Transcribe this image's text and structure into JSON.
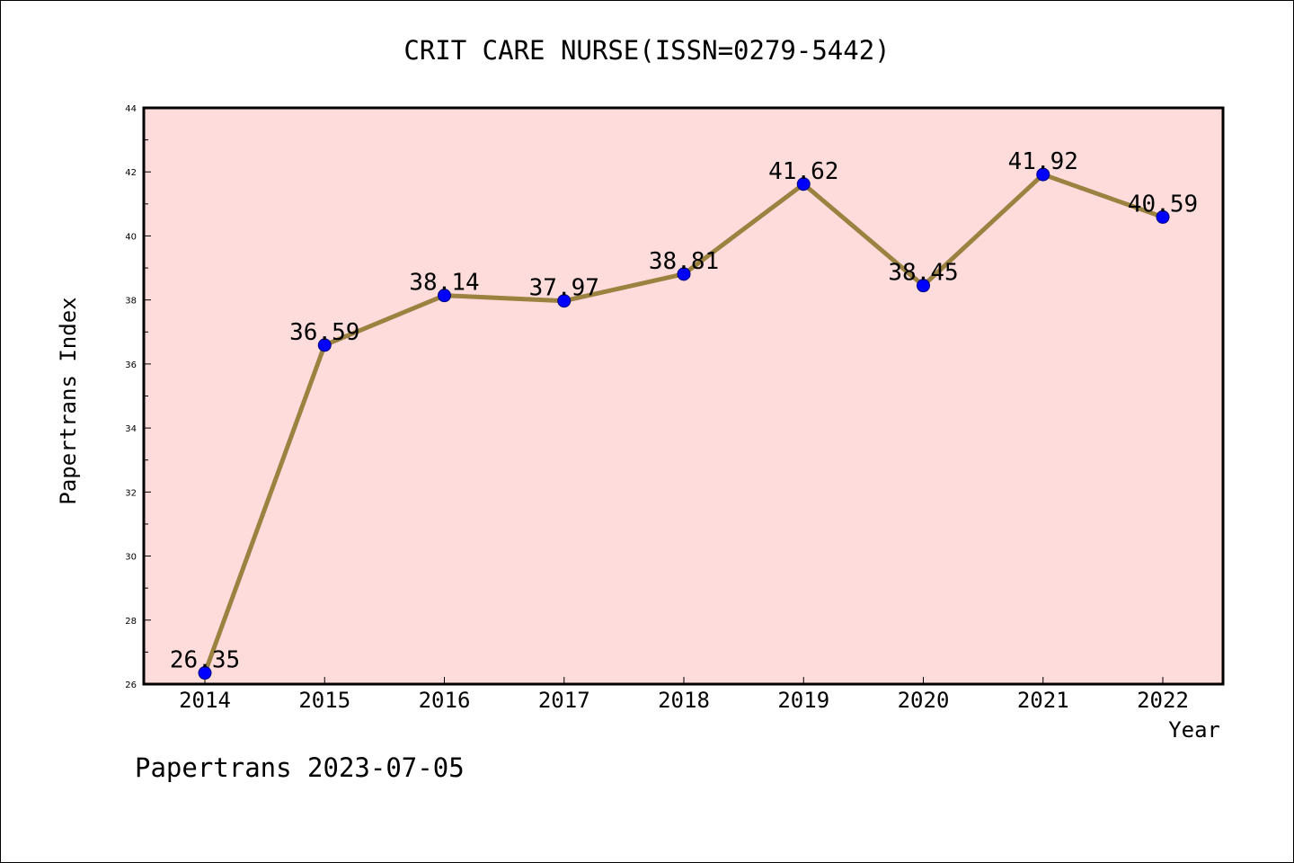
{
  "chart_data": {
    "type": "line",
    "title": "CRIT CARE NURSE(ISSN=0279-5442)",
    "xlabel": "Year",
    "ylabel": "Papertrans Index",
    "categories": [
      "2014",
      "2015",
      "2016",
      "2017",
      "2018",
      "2019",
      "2020",
      "2021",
      "2022"
    ],
    "values": [
      26.35,
      36.59,
      38.14,
      37.97,
      38.81,
      41.62,
      38.45,
      41.92,
      40.59
    ],
    "data_labels": [
      "26.35",
      "36.59",
      "38.14",
      "37.97",
      "38.81",
      "41.62",
      "38.45",
      "41.92",
      "40.59"
    ],
    "ylim": [
      26,
      44
    ],
    "yticks": [
      26,
      28,
      30,
      32,
      34,
      36,
      38,
      40,
      42,
      44
    ],
    "grid": false,
    "colors": {
      "plot_background": "#ffdcdc",
      "line": "#9b8240",
      "marker": "#0000ff"
    }
  },
  "footer": "Papertrans 2023-07-05"
}
